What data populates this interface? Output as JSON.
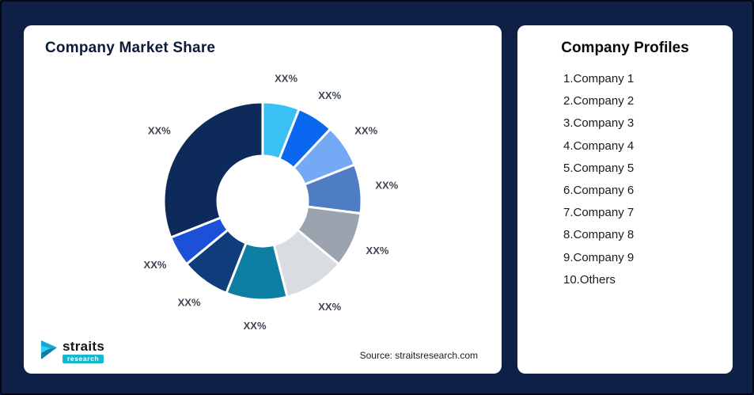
{
  "left_card": {
    "title": "Company Market Share",
    "source": "Source: straitsresearch.com",
    "logo": {
      "name": "straits",
      "sub": "research"
    }
  },
  "right_card": {
    "title": "Company Profiles",
    "items": [
      "1.Company 1",
      "2.Company 2",
      "3.Company 3",
      "4.Company 4",
      "5.Company 5",
      "6.Company 6",
      "7.Company 7",
      "8.Company 8",
      "9.Company 9",
      "10.Others"
    ]
  },
  "chart_data": {
    "type": "pie",
    "subtype": "donut",
    "title": "Company Market Share",
    "legend": "none",
    "note": "All slice data labels are placeholders reading XX%; slice sizes estimated from pixels",
    "segments": [
      {
        "label": "XX%",
        "value": 6,
        "color": "#38c1f2",
        "name": "Company 1"
      },
      {
        "label": "XX%",
        "value": 6,
        "color": "#0a68f0",
        "name": "Company 2"
      },
      {
        "label": "XX%",
        "value": 7,
        "color": "#74a9f5",
        "name": "Company 3"
      },
      {
        "label": "XX%",
        "value": 8,
        "color": "#4f7dc3",
        "name": "Company 4"
      },
      {
        "label": "XX%",
        "value": 9,
        "color": "#9aa3ae",
        "name": "Company 5"
      },
      {
        "label": "XX%",
        "value": 10,
        "color": "#d9dde2",
        "name": "Company 6"
      },
      {
        "label": "XX%",
        "value": 10,
        "color": "#0e7ea3",
        "name": "Company 7"
      },
      {
        "label": "XX%",
        "value": 8,
        "color": "#0f3d7c",
        "name": "Company 8"
      },
      {
        "label": "XX%",
        "value": 5,
        "color": "#1d50d8",
        "name": "Company 9"
      },
      {
        "label": "XX%",
        "value": 31,
        "color": "#0d2a5a",
        "name": "Others"
      }
    ],
    "colors_accent": {
      "background": "#0e2045",
      "card": "#ffffff",
      "title": "#0d1b39",
      "label": "#3d4551",
      "logo_teal": "#14b8cf"
    }
  }
}
